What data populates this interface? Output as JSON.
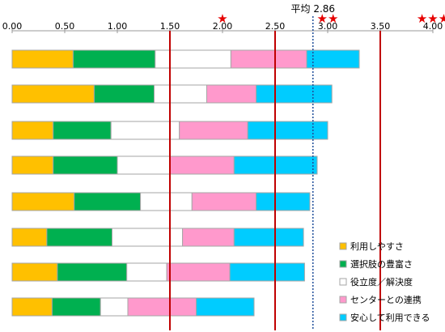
{
  "chart_data": {
    "type": "bar",
    "orientation": "horizontal",
    "stacked": true,
    "xlim": [
      0,
      4
    ],
    "x_ticks": [
      "0.00",
      "0.50",
      "1.00",
      "1.50",
      "2.00",
      "2.50",
      "3.00",
      "3.50",
      "4.00"
    ],
    "grid": false,
    "legend_position": "bottom-right",
    "series": [
      {
        "name": "利用しやすさ",
        "color": "#FFC000",
        "values": [
          0.58,
          0.78,
          0.39,
          0.39,
          0.59,
          0.33,
          0.43,
          0.38
        ]
      },
      {
        "name": "選択肢の豊富さ",
        "color": "#00B050",
        "values": [
          0.78,
          0.57,
          0.55,
          0.61,
          0.63,
          0.62,
          0.66,
          0.46
        ]
      },
      {
        "name": "役立度／解決度",
        "color": "#FFFFFF",
        "values": [
          0.72,
          0.5,
          0.65,
          0.5,
          0.49,
          0.67,
          0.38,
          0.26
        ]
      },
      {
        "name": "センターとの連携",
        "color": "#FF99CC",
        "values": [
          0.72,
          0.47,
          0.65,
          0.61,
          0.61,
          0.49,
          0.6,
          0.65
        ]
      },
      {
        "name": "安心して利用できる",
        "color": "#00CCFF",
        "values": [
          0.5,
          0.72,
          0.76,
          0.79,
          0.51,
          0.66,
          0.71,
          0.55
        ]
      }
    ],
    "reference_lines": [
      1.5,
      2.5,
      3.5
    ],
    "average": {
      "value": 2.86,
      "label": "平均 2.86"
    },
    "star_markers": [
      {
        "x": 2.0,
        "text": "★"
      },
      {
        "x": 3.0,
        "text": "★★"
      },
      {
        "x": 4.0,
        "text": "★★★"
      }
    ]
  }
}
